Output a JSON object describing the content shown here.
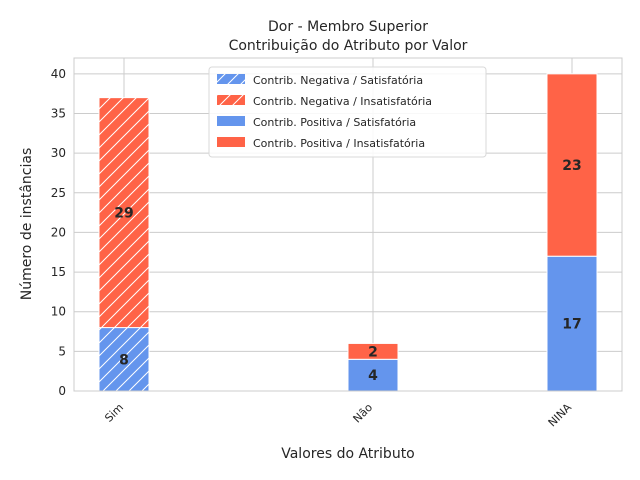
{
  "chart_data": {
    "type": "bar",
    "stacked": true,
    "title": "Dor - Membro Superior",
    "subtitle": "Contribuição do Atributo por Valor",
    "xlabel": "Valores do Atributo",
    "ylabel": "Número de instâncias",
    "categories": [
      "Sim",
      "Não",
      "NINA"
    ],
    "ylim": [
      0,
      42
    ],
    "yticks": [
      0,
      5,
      10,
      15,
      20,
      25,
      30,
      35,
      40
    ],
    "grid": true,
    "legend_position": "top-center",
    "series": [
      {
        "name": "Contrib. Negativa / Satisfatória",
        "color": "#6495ed",
        "hatch": true,
        "values": [
          8,
          0,
          0
        ],
        "labels": [
          "8",
          "",
          ""
        ]
      },
      {
        "name": "Contrib. Negativa / Insatisfatória",
        "color": "#ff6347",
        "hatch": true,
        "values": [
          29,
          0,
          0
        ],
        "labels": [
          "29",
          "",
          ""
        ]
      },
      {
        "name": "Contrib. Positiva / Satisfatória",
        "color": "#6495ed",
        "hatch": false,
        "values": [
          0,
          4,
          17
        ],
        "labels": [
          "",
          "4",
          "17"
        ]
      },
      {
        "name": "Contrib. Positiva / Insatisfatória",
        "color": "#ff6347",
        "hatch": false,
        "values": [
          0,
          2,
          23
        ],
        "labels": [
          "",
          "2",
          "23"
        ]
      }
    ]
  }
}
